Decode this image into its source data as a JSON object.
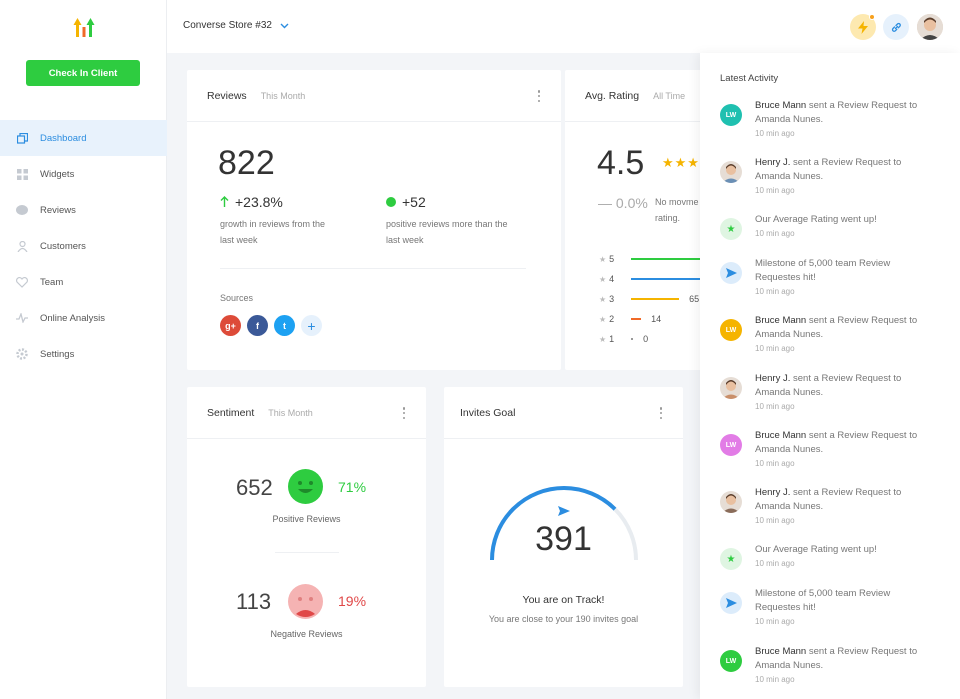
{
  "sidebar": {
    "checkin_label": "Check In Client",
    "items": [
      {
        "label": "Dashboard",
        "icon": "dashboard-icon",
        "active": true
      },
      {
        "label": "Widgets",
        "icon": "widgets-icon"
      },
      {
        "label": "Reviews",
        "icon": "reviews-icon"
      },
      {
        "label": "Customers",
        "icon": "customers-icon"
      },
      {
        "label": "Team",
        "icon": "team-icon"
      },
      {
        "label": "Online Analysis",
        "icon": "analysis-icon"
      },
      {
        "label": "Settings",
        "icon": "settings-icon"
      }
    ]
  },
  "topbar": {
    "store": "Converse Store #32"
  },
  "reviews": {
    "title": "Reviews",
    "period": "This Month",
    "total": "822",
    "growth": "+23.8%",
    "growth_desc": "growth in reviews from the last week",
    "positive": "+52",
    "positive_desc": "positive reviews more than the last week",
    "sources_label": "Sources",
    "sources": [
      "g+",
      "f",
      "t",
      "+"
    ]
  },
  "rating": {
    "title": "Avg. Rating",
    "period": "All Time",
    "value": "4.5",
    "change": "— 0.0%",
    "change_desc": "No movme rating.",
    "rows": [
      {
        "star": "5",
        "value": null,
        "frac": 1.0,
        "color": "#2ecc40"
      },
      {
        "star": "4",
        "value": null,
        "frac": 1.0,
        "color": "#2b8de0"
      },
      {
        "star": "3",
        "value": "65",
        "frac": 0.6,
        "color": "#f5b400"
      },
      {
        "star": "2",
        "value": "14",
        "frac": 0.13,
        "color": "#f06a28"
      },
      {
        "star": "1",
        "value": "0",
        "frac": 0.02,
        "color": "#999999"
      }
    ]
  },
  "sentiment": {
    "title": "Sentiment",
    "period": "This Month",
    "positive_count": "652",
    "positive_pct": "71%",
    "positive_label": "Positive Reviews",
    "negative_count": "113",
    "negative_pct": "19%",
    "negative_label": "Negative Reviews"
  },
  "invites": {
    "title": "Invites Goal",
    "count": "391",
    "status": "You are on Track!",
    "desc": "You are close to your 190 invites goal",
    "progress": 0.75
  },
  "activity": {
    "title": "Latest Activity",
    "items": [
      {
        "type": "initials",
        "initials": "LW",
        "color": "#1fc0b0",
        "name": "Bruce Mann",
        "text": " sent a Review Request to Amanda Nunes.",
        "time": "10 min ago"
      },
      {
        "type": "photo",
        "color": "#6a8fb5",
        "name": "Henry J.",
        "text": " sent a Review Request to Amanda Nunes.",
        "time": "10 min ago"
      },
      {
        "type": "star",
        "color": "#dff5e2",
        "name": "",
        "text": "Our Average Rating went up!",
        "time": "10 min ago"
      },
      {
        "type": "send",
        "color": "#dcecfb",
        "name": "",
        "text": "Milestone of 5,000 team Review Requestes hit!",
        "time": "10 min ago"
      },
      {
        "type": "initials",
        "initials": "LW",
        "color": "#f5b400",
        "name": "Bruce Mann",
        "text": " sent a Review Request to Amanda Nunes.",
        "time": "10 min ago"
      },
      {
        "type": "photo",
        "color": "#c98f6a",
        "name": "Henry J.",
        "text": " sent a Review Request to Amanda Nunes.",
        "time": "10 min ago"
      },
      {
        "type": "initials",
        "initials": "LW",
        "color": "#e27ce6",
        "name": "Bruce Mann",
        "text": " sent a Review Request to Amanda Nunes.",
        "time": "10 min ago"
      },
      {
        "type": "photo",
        "color": "#8a6c5a",
        "name": "Henry J.",
        "text": " sent a Review Request to Amanda Nunes.",
        "time": "10 min ago"
      },
      {
        "type": "star",
        "color": "#dff5e2",
        "name": "",
        "text": "Our Average Rating went up!",
        "time": "10 min ago"
      },
      {
        "type": "send",
        "color": "#dcecfb",
        "name": "",
        "text": "Milestone of 5,000 team Review Requestes hit!",
        "time": "10 min ago"
      },
      {
        "type": "initials",
        "initials": "LW",
        "color": "#2ecc40",
        "name": "Bruce Mann",
        "text": " sent a Review Request to Amanda Nunes.",
        "time": "10 min ago"
      }
    ]
  }
}
